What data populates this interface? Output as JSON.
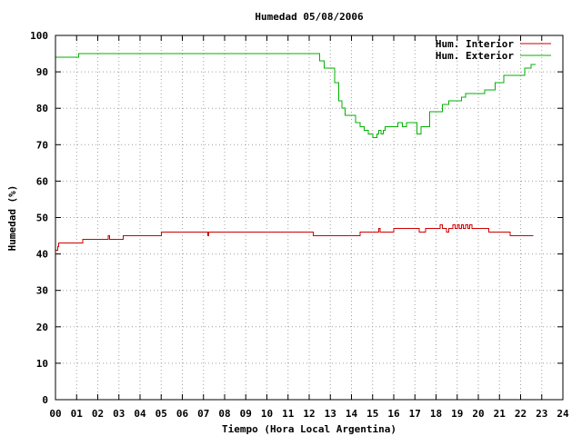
{
  "chart_data": {
    "type": "line",
    "title": "Humedad 05/08/2006",
    "xlabel": "Tiempo (Hora Local Argentina)",
    "ylabel": "Humedad (%)",
    "xlim": [
      0,
      24
    ],
    "ylim": [
      0,
      100
    ],
    "x_ticks": [
      0,
      1,
      2,
      3,
      4,
      5,
      6,
      7,
      8,
      9,
      10,
      11,
      12,
      13,
      14,
      15,
      16,
      17,
      18,
      19,
      20,
      21,
      22,
      23,
      24
    ],
    "x_tick_labels": [
      "00",
      "01",
      "02",
      "03",
      "04",
      "05",
      "06",
      "07",
      "08",
      "09",
      "10",
      "11",
      "12",
      "13",
      "14",
      "15",
      "16",
      "17",
      "18",
      "19",
      "20",
      "21",
      "22",
      "23",
      "24"
    ],
    "y_ticks": [
      0,
      10,
      20,
      30,
      40,
      50,
      60,
      70,
      80,
      90,
      100
    ],
    "y_tick_labels": [
      "0",
      "10",
      "20",
      "30",
      "40",
      "50",
      "60",
      "70",
      "80",
      "90",
      "100"
    ],
    "grid": true,
    "legend_position": "top-right",
    "series": [
      {
        "name": "Hum. Interior",
        "color": "#cc0000",
        "step": true,
        "x": [
          0.0,
          0.1,
          0.15,
          0.2,
          1.3,
          2.5,
          2.55,
          2.6,
          3.2,
          5.0,
          7.2,
          7.25,
          7.3,
          12.2,
          14.4,
          15.3,
          15.35,
          15.4,
          15.7,
          16.0,
          16.1,
          17.2,
          17.5,
          18.2,
          18.3,
          18.5,
          18.6,
          18.8,
          18.9,
          19.0,
          19.1,
          19.2,
          19.3,
          19.4,
          19.5,
          19.6,
          19.7,
          20.5,
          21.5,
          22.6
        ],
        "y": [
          41,
          42,
          43,
          43,
          44,
          45,
          44,
          44,
          45,
          46,
          45,
          46,
          46,
          45,
          46,
          47,
          46,
          46,
          46,
          47,
          47,
          46,
          47,
          48,
          47,
          46,
          47,
          48,
          47,
          48,
          47,
          48,
          47,
          48,
          47,
          48,
          47,
          46,
          45,
          45
        ]
      },
      {
        "name": "Hum. Exterior",
        "color": "#00b000",
        "step": true,
        "x": [
          0.0,
          1.1,
          12.5,
          12.7,
          13.2,
          13.4,
          13.55,
          13.7,
          14.2,
          14.4,
          14.6,
          14.8,
          15.0,
          15.2,
          15.3,
          15.4,
          15.5,
          15.6,
          15.8,
          16.2,
          16.4,
          16.6,
          16.8,
          17.1,
          17.3,
          17.7,
          18.0,
          18.3,
          18.6,
          19.2,
          19.4,
          20.0,
          20.3,
          20.8,
          21.2,
          22.0,
          22.2,
          22.5,
          22.7
        ],
        "y": [
          94,
          95,
          93,
          91,
          87,
          82,
          80,
          78,
          76,
          75,
          74,
          73,
          72,
          73,
          74,
          73,
          74,
          75,
          75,
          76,
          75,
          76,
          76,
          73,
          75,
          79,
          79,
          81,
          82,
          83,
          84,
          84,
          85,
          87,
          89,
          89,
          91,
          92,
          92
        ]
      }
    ]
  }
}
